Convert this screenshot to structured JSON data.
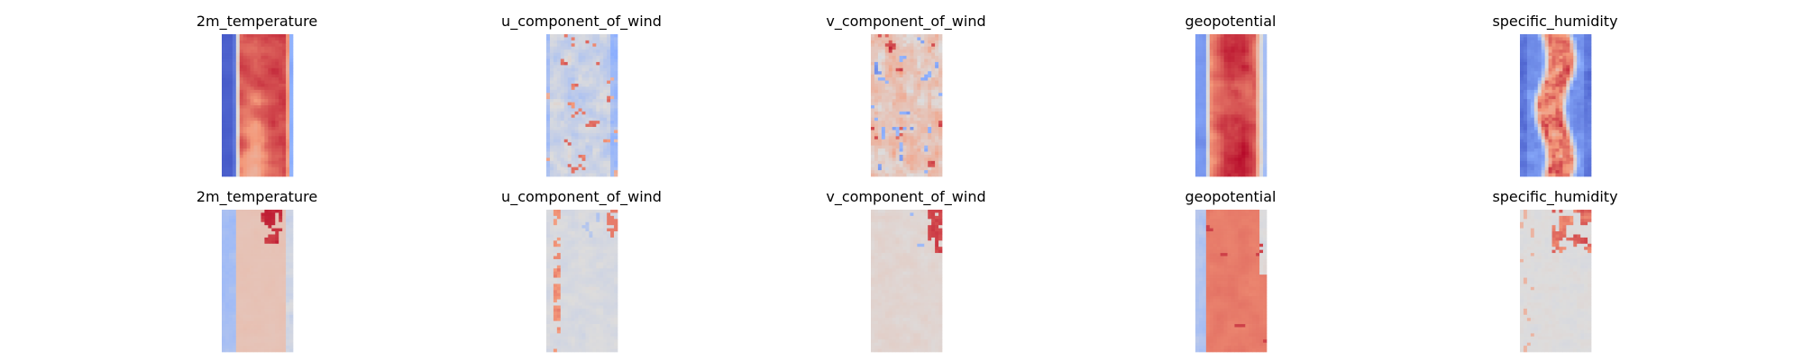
{
  "figure": {
    "colormap": "coolwarm",
    "colors": {
      "cold": "#3b4cc0",
      "neutral": "#dddcdc",
      "warm": "#b40426"
    }
  },
  "chart_data": [
    {
      "type": "heatmap",
      "row": 0,
      "col": 0,
      "title": "2m_temperature",
      "pattern": "temperature",
      "axis": "off"
    },
    {
      "type": "heatmap",
      "row": 0,
      "col": 1,
      "title": "u_component_of_wind",
      "pattern": "uwind",
      "axis": "off"
    },
    {
      "type": "heatmap",
      "row": 0,
      "col": 2,
      "title": "v_component_of_wind",
      "pattern": "vwind",
      "axis": "off"
    },
    {
      "type": "heatmap",
      "row": 0,
      "col": 3,
      "title": "geopotential",
      "pattern": "geopotential",
      "axis": "off"
    },
    {
      "type": "heatmap",
      "row": 0,
      "col": 4,
      "title": "specific_humidity",
      "pattern": "humidity",
      "axis": "off"
    },
    {
      "type": "heatmap",
      "row": 1,
      "col": 0,
      "title": "2m_temperature",
      "pattern": "temperature_pred",
      "axis": "off"
    },
    {
      "type": "heatmap",
      "row": 1,
      "col": 1,
      "title": "u_component_of_wind",
      "pattern": "uwind_pred",
      "axis": "off"
    },
    {
      "type": "heatmap",
      "row": 1,
      "col": 2,
      "title": "v_component_of_wind",
      "pattern": "vwind_pred",
      "axis": "off"
    },
    {
      "type": "heatmap",
      "row": 1,
      "col": 3,
      "title": "geopotential",
      "pattern": "geopotential_pred",
      "axis": "off"
    },
    {
      "type": "heatmap",
      "row": 1,
      "col": 4,
      "title": "specific_humidity",
      "pattern": "humidity_pred",
      "axis": "off"
    }
  ]
}
